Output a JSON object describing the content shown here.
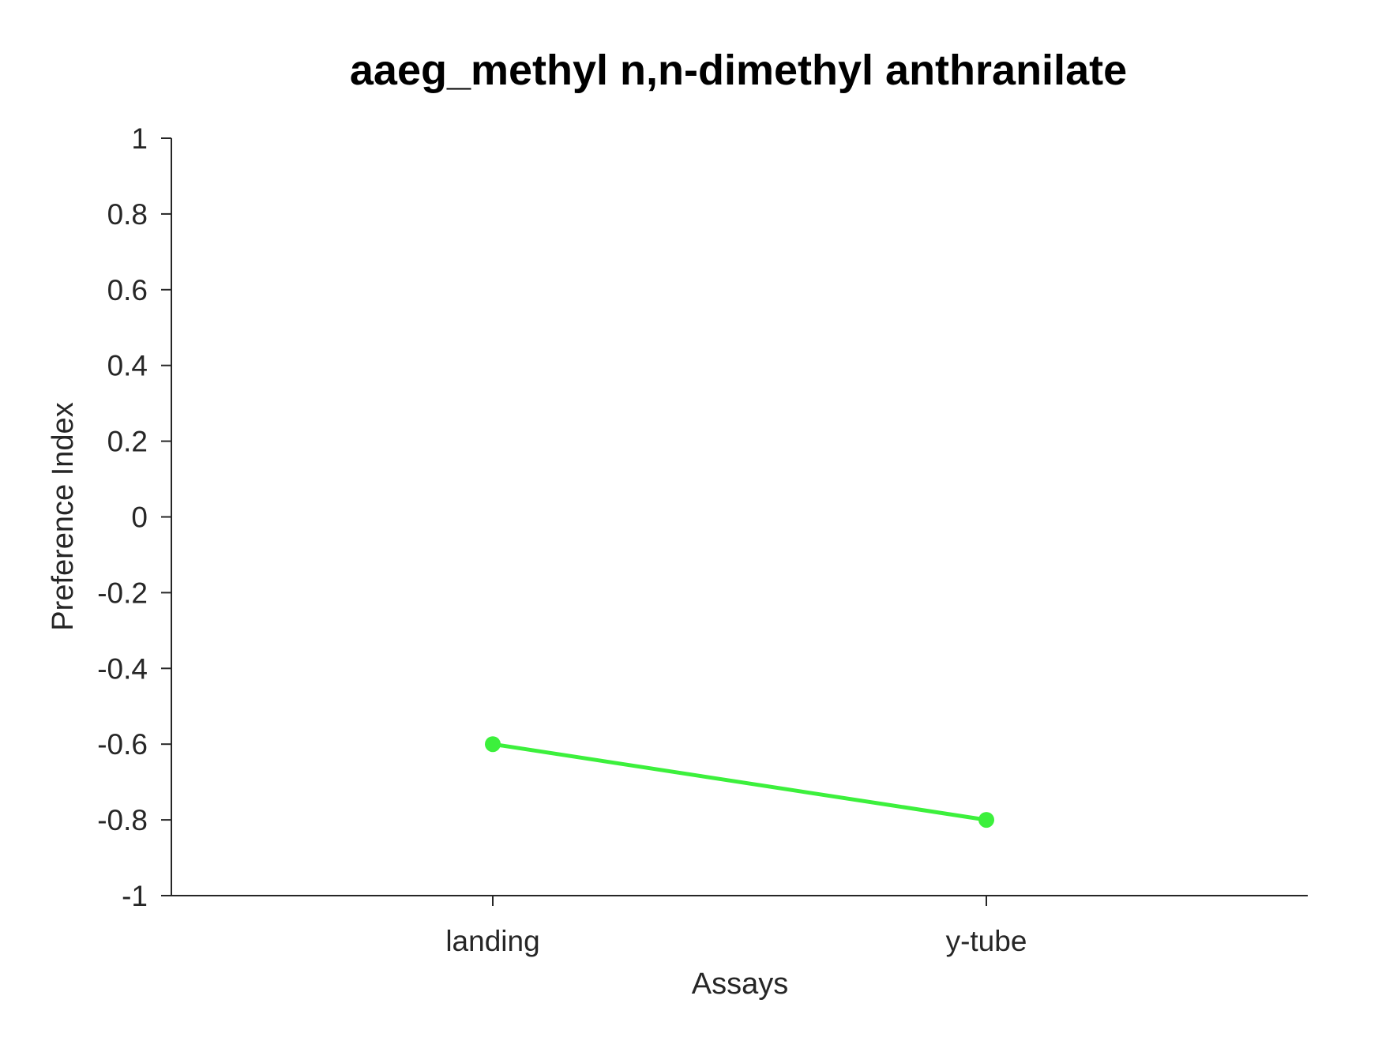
{
  "chart_data": {
    "type": "line",
    "title": "aaeg_methyl n,n-dimethyl anthranilate",
    "xlabel": "Assays",
    "ylabel": "Preference Index",
    "categories": [
      "landing",
      "y-tube"
    ],
    "series": [
      {
        "values": [
          -0.6,
          -0.8
        ],
        "color": "#3cf03c"
      }
    ],
    "ylim": [
      -1,
      1
    ],
    "yticks": [
      {
        "value": 1,
        "label": "1"
      },
      {
        "value": 0.8,
        "label": "0.8"
      },
      {
        "value": 0.6,
        "label": "0.6"
      },
      {
        "value": 0.4,
        "label": "0.4"
      },
      {
        "value": 0.2,
        "label": "0.2"
      },
      {
        "value": 0,
        "label": "0"
      },
      {
        "value": -0.2,
        "label": "-0.2"
      },
      {
        "value": -0.4,
        "label": "-0.4"
      },
      {
        "value": -0.6,
        "label": "-0.6"
      },
      {
        "value": -0.8,
        "label": "-0.8"
      },
      {
        "value": -1,
        "label": "-1"
      }
    ],
    "grid": false,
    "legend": "none"
  }
}
